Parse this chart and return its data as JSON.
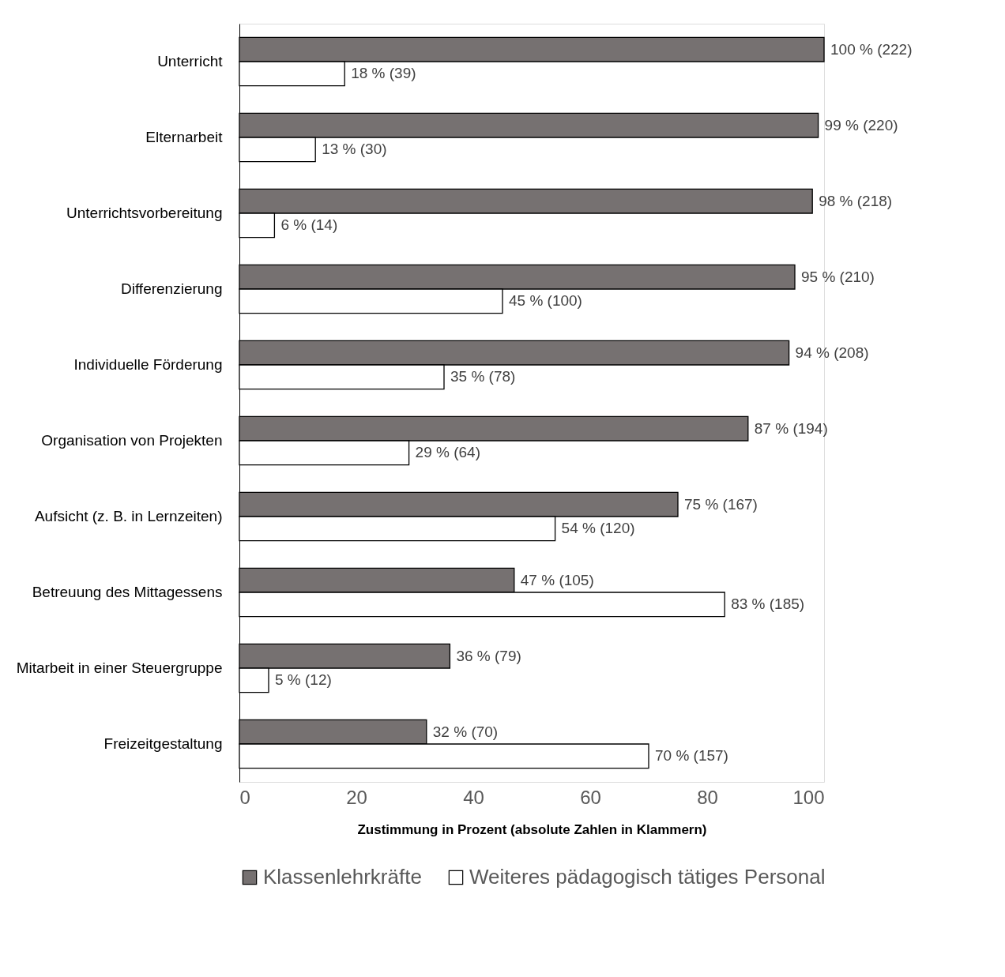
{
  "chart_data": {
    "type": "bar",
    "orientation": "horizontal",
    "xlabel": "Zustimmung in Prozent (absolute Zahlen in Klammern)",
    "categories": [
      "Unterricht",
      "Elternarbeit",
      "Unterrichtsvorbereitung",
      "Differenzierung",
      "Individuelle Förderung",
      "Organisation von Projekten",
      "Aufsicht (z. B. in Lernzeiten)",
      "Betreuung des Mittagessens",
      "Mitarbeit in einer Steuergruppe",
      "Freizeitgestaltung"
    ],
    "series": [
      {
        "name": "Klassenlehrkräfte",
        "color": "#767171",
        "values": [
          100,
          99,
          98,
          95,
          94,
          87,
          75,
          47,
          36,
          32
        ],
        "value_labels": [
          "100 % (222)",
          "99 % (220)",
          "98 % (218)",
          "95 % (210)",
          "94 % (208)",
          "87 % (194)",
          "75  % (167)",
          "47 % (105)",
          "36 % (79)",
          "32 % (70)"
        ]
      },
      {
        "name": "Weiteres pädagogisch tätiges Personal",
        "color": "#ffffff",
        "values": [
          18,
          13,
          6,
          45,
          35,
          29,
          54,
          83,
          5,
          70
        ],
        "value_labels": [
          "18 % (39)",
          "13 % (30)",
          "6 % (14)",
          "45 % (100)",
          "35 % (78)",
          "29 % (64)",
          "54 % (120)",
          "83 % (185)",
          "5 % (12)",
          "70 % (157)"
        ]
      }
    ],
    "xlim": [
      0,
      100
    ],
    "xticks": [
      0,
      20,
      40,
      60,
      80,
      100
    ],
    "grid": false,
    "legend": "bottom"
  }
}
